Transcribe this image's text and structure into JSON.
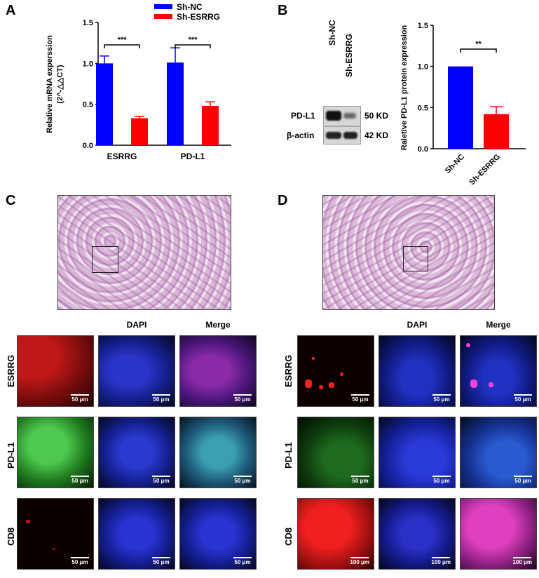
{
  "panels": {
    "a": "A",
    "b": "B",
    "c": "C",
    "d": "D"
  },
  "chart_data": [
    {
      "type": "bar",
      "categories": [
        "ESRRG",
        "PD-L1"
      ],
      "series": [
        {
          "name": "Sh-NC",
          "values": [
            1.0,
            1.01
          ],
          "errors": [
            0.09,
            0.18
          ],
          "color": "#0000ff"
        },
        {
          "name": "Sh-ESRRG",
          "values": [
            0.33,
            0.48
          ],
          "errors": [
            0.02,
            0.05
          ],
          "color": "#ff0000"
        }
      ],
      "ylabel": "Relative mRNA experssion",
      "ylabel2": "(2^-△△CT)",
      "ylim": [
        0,
        1.5
      ],
      "yticks": [
        "0.0",
        "0.5",
        "1.0",
        "1.5"
      ],
      "significance": [
        "***",
        "***"
      ],
      "legend": "top-right"
    },
    {
      "type": "bar",
      "categories": [
        "Sh-NC",
        "Sh-ESRRG"
      ],
      "values": [
        1.0,
        0.42
      ],
      "errors": [
        0,
        0.09
      ],
      "colors": [
        "#0000ff",
        "#ff0000"
      ],
      "ylabel": "Raletive PD-L1 protein expression",
      "ylim": [
        0,
        1.5
      ],
      "yticks": [
        "0.0",
        "0.5",
        "1.0",
        "1.5"
      ],
      "significance": "**"
    }
  ],
  "blot": {
    "lanes": [
      "Sh-NC",
      "Sh-ESRRG"
    ],
    "rows": [
      {
        "label": "PD-L1",
        "size": "50 KD"
      },
      {
        "label": "β-actin",
        "size": "42 KD"
      }
    ]
  },
  "if_grid": {
    "columns": [
      "DAPI",
      "Merge"
    ],
    "rows": [
      "ESRRG",
      "PD-L1",
      "CD8"
    ],
    "scale_c": [
      "50 μm",
      "50 μm",
      "50 μm"
    ],
    "scale_d": [
      "50 μm",
      "50 μm",
      "100 μm"
    ]
  }
}
